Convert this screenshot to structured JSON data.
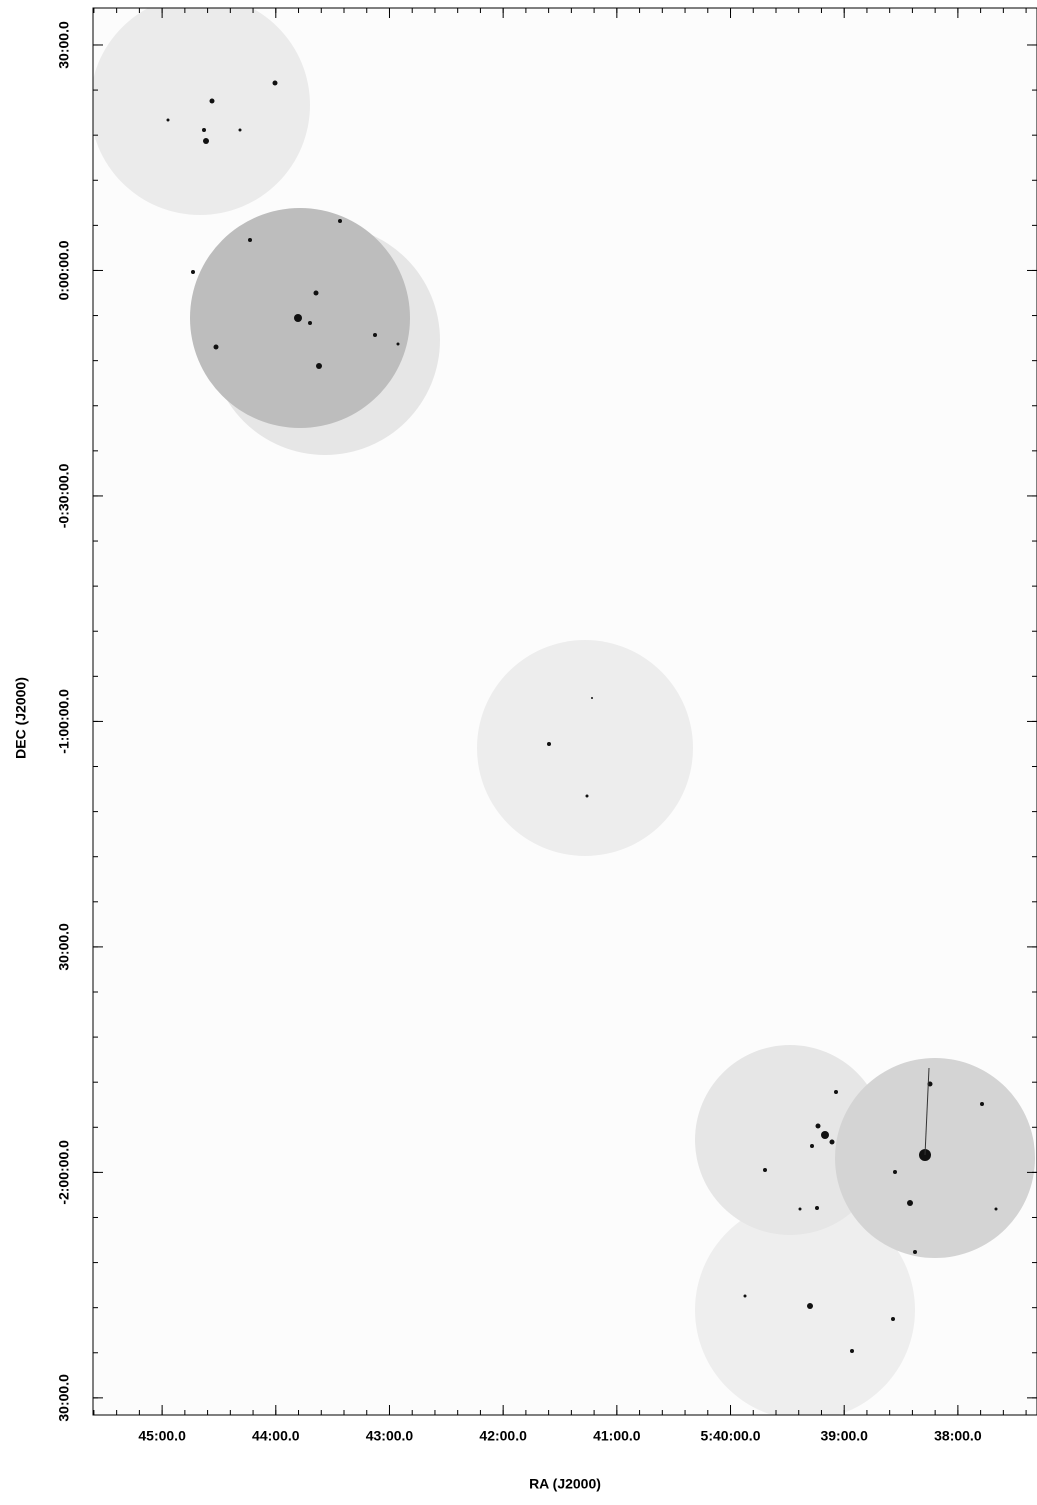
{
  "chart_data": {
    "type": "image",
    "x_label": "RA (J2000)",
    "y_label": "DEC (J2000)",
    "xlim": [
      86.402,
      84.326
    ],
    "ylim": [
      -2.538,
      0.582
    ],
    "xticks": [
      {
        "value": 86.25,
        "label": "45:00.0"
      },
      {
        "value": 86.0,
        "label": "44:00.0"
      },
      {
        "value": 85.75,
        "label": "43:00.0"
      },
      {
        "value": 85.5,
        "label": "42:00.0"
      },
      {
        "value": 85.25,
        "label": "41:00.0"
      },
      {
        "value": 85.0,
        "label": "5:40:00.0"
      },
      {
        "value": 84.75,
        "label": "39:00.0"
      },
      {
        "value": 84.5,
        "label": "38:00.0"
      }
    ],
    "yticks": [
      {
        "value": 0.5,
        "label": "30:00.0"
      },
      {
        "value": 0.0,
        "label": "0:00:00.0"
      },
      {
        "value": -0.5,
        "label": "-0:30:00.0"
      },
      {
        "value": -1.0,
        "label": "-1:00:00.0"
      },
      {
        "value": -1.5,
        "label": "30:00.0"
      },
      {
        "value": -2.0,
        "label": "-2:00:00.0"
      },
      {
        "value": -2.5,
        "label": "30:00.0"
      }
    ]
  }
}
